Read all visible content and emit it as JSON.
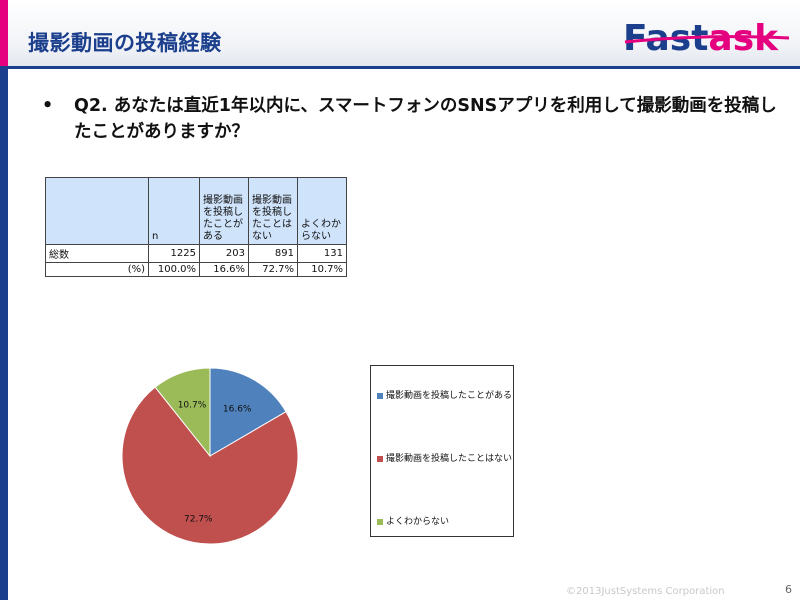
{
  "header": {
    "title": "撮影動画の投稿経験",
    "logo_text_a": "Fast",
    "logo_text_b": "ask",
    "brand_blue": "#1b3f8c",
    "brand_pink": "#e4007f"
  },
  "question": {
    "bullet": "•",
    "text": "Q2. あなたは直近1年以内に、スマートフォンのSNSアプリを利用して撮影動画を投稿したことがありますか？"
  },
  "table": {
    "headers": [
      "",
      "n",
      "撮影動画を投稿したことがある",
      "撮影動画を投稿したことはない",
      "よくわからない"
    ],
    "header_lines": [
      [
        ""
      ],
      [
        "n"
      ],
      [
        "撮影動画",
        "を投稿し",
        "たことが",
        "ある"
      ],
      [
        "撮影動画",
        "を投稿し",
        "たことは",
        "ない"
      ],
      [
        "よくわか",
        "らない"
      ]
    ],
    "rows": [
      [
        "総数",
        "1225",
        "203",
        "891",
        "131"
      ],
      [
        "(%)",
        "100.0%",
        "16.6%",
        "72.7%",
        "10.7%"
      ]
    ]
  },
  "chart_data": {
    "type": "pie",
    "categories": [
      "撮影動画を投稿したことがある",
      "撮影動画を投稿したことはない",
      "よくわからない"
    ],
    "values": [
      16.6,
      72.7,
      10.7
    ],
    "labels": [
      "16.6%",
      "72.7%",
      "10.7%"
    ],
    "colors": [
      "#4f81bd",
      "#c0504d",
      "#9bbb59"
    ],
    "legend_position": "right"
  },
  "footer": {
    "copyright": "©2013JustSystems Corporation",
    "page_number": "6"
  }
}
